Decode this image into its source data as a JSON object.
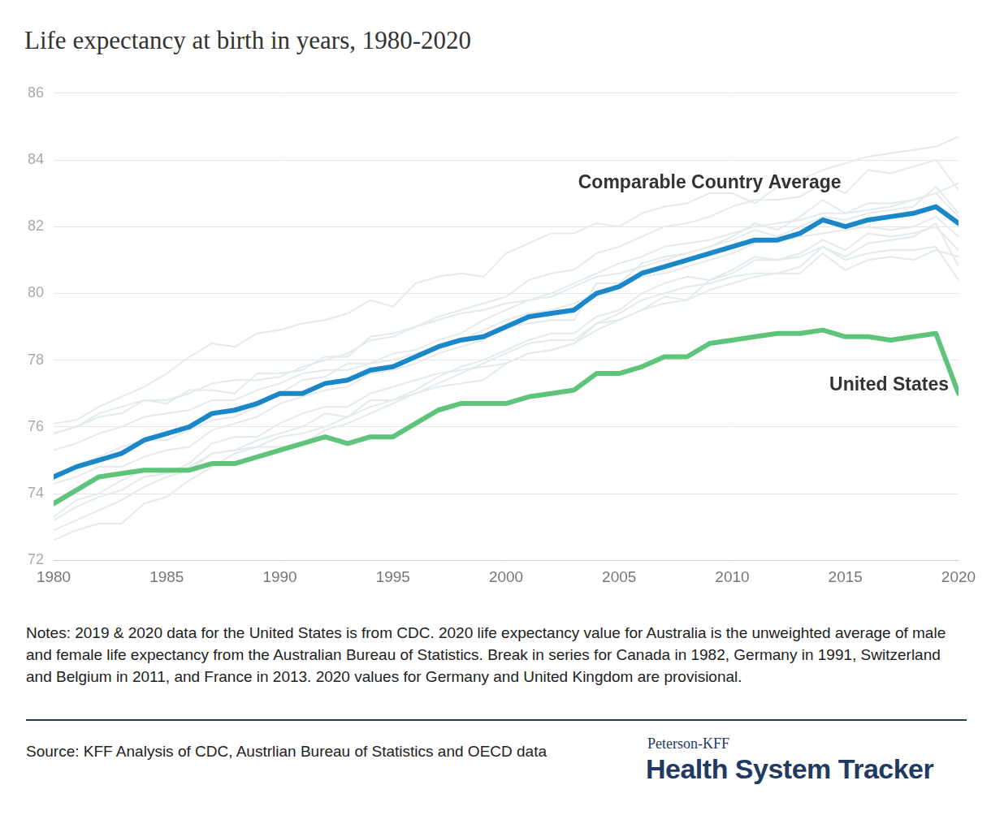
{
  "chart_data": {
    "type": "line",
    "title": "Life expectancy at birth in years, 1980-2020",
    "x": [
      1980,
      1981,
      1982,
      1983,
      1984,
      1985,
      1986,
      1987,
      1988,
      1989,
      1990,
      1991,
      1992,
      1993,
      1994,
      1995,
      1996,
      1997,
      1998,
      1999,
      2000,
      2001,
      2002,
      2003,
      2004,
      2005,
      2006,
      2007,
      2008,
      2009,
      2010,
      2011,
      2012,
      2013,
      2014,
      2015,
      2016,
      2017,
      2018,
      2019,
      2020
    ],
    "xlim": [
      1980,
      2020
    ],
    "xticks": [
      1980,
      1985,
      1990,
      1995,
      2000,
      2005,
      2010,
      2015,
      2020
    ],
    "ylim": [
      72,
      86
    ],
    "yticks": [
      72,
      74,
      76,
      78,
      80,
      82,
      84,
      86
    ],
    "grid": true,
    "series": [
      {
        "color": "#e4eaee",
        "values": [
          76.1,
          76.2,
          76.6,
          76.9,
          77.2,
          77.6,
          78.1,
          78.5,
          78.4,
          78.8,
          78.9,
          79.1,
          79.2,
          79.4,
          79.8,
          79.6,
          80.3,
          80.5,
          80.6,
          80.5,
          81.2,
          81.5,
          81.8,
          81.8,
          82.1,
          82.0,
          82.4,
          82.6,
          82.7,
          83.0,
          83.0,
          82.7,
          83.2,
          83.4,
          83.7,
          83.9,
          84.1,
          84.2,
          84.3,
          84.4,
          84.7
        ]
      },
      {
        "color": "#e4eaee",
        "values": [
          75.8,
          76.0,
          76.3,
          76.4,
          76.8,
          76.8,
          77.0,
          77.3,
          77.4,
          77.4,
          77.5,
          77.8,
          78.0,
          78.2,
          78.6,
          78.7,
          79.0,
          79.3,
          79.5,
          79.7,
          79.9,
          80.4,
          80.6,
          80.7,
          81.2,
          81.4,
          81.7,
          82.0,
          82.1,
          82.3,
          82.6,
          82.8,
          82.8,
          82.9,
          83.3,
          83.0,
          83.7,
          83.6,
          83.8,
          84.0,
          83.1
        ]
      },
      {
        "color": "#e4eaee",
        "values": [
          74.6,
          74.8,
          75.1,
          75.4,
          75.6,
          75.6,
          75.9,
          76.2,
          76.3,
          76.6,
          77.0,
          77.4,
          77.5,
          77.9,
          77.9,
          78.2,
          78.3,
          78.6,
          78.8,
          79.2,
          79.5,
          79.8,
          80.0,
          80.3,
          80.6,
          80.9,
          81.1,
          81.4,
          81.5,
          81.6,
          81.8,
          82.0,
          82.1,
          82.2,
          82.4,
          82.4,
          82.5,
          82.6,
          82.8,
          83.0,
          83.3
        ]
      },
      {
        "color": "#e4eaee",
        "values": [
          75.8,
          76.0,
          76.4,
          76.6,
          76.8,
          76.7,
          77.1,
          77.1,
          77.0,
          77.6,
          77.6,
          77.7,
          78.1,
          78.1,
          78.7,
          78.8,
          79.0,
          79.2,
          79.4,
          79.5,
          79.7,
          79.8,
          79.9,
          80.2,
          80.5,
          80.6,
          80.8,
          81.0,
          81.2,
          81.4,
          81.6,
          81.9,
          81.7,
          82.0,
          82.3,
          82.2,
          82.4,
          82.5,
          82.6,
          83.2,
          82.4
        ]
      },
      {
        "color": "#e4eaee",
        "values": [
          75.3,
          75.5,
          75.8,
          76.0,
          76.3,
          76.4,
          76.5,
          76.8,
          76.8,
          77.1,
          77.3,
          77.6,
          77.7,
          77.7,
          77.9,
          78.0,
          78.2,
          78.4,
          78.6,
          78.9,
          79.2,
          79.4,
          79.5,
          79.7,
          80.0,
          80.2,
          80.5,
          80.6,
          80.8,
          81.0,
          81.2,
          81.5,
          81.6,
          81.7,
          81.8,
          81.9,
          82.0,
          81.9,
          82.0,
          82.3,
          81.7
        ]
      },
      {
        "color": "#e4eaee",
        "values": [
          74.3,
          74.5,
          74.8,
          74.8,
          75.1,
          75.3,
          75.4,
          75.9,
          76.1,
          76.3,
          76.7,
          76.9,
          77.1,
          77.2,
          77.6,
          77.7,
          77.9,
          78.2,
          78.4,
          78.6,
          79.0,
          79.1,
          79.2,
          79.2,
          80.3,
          80.3,
          80.9,
          81.1,
          81.2,
          81.4,
          81.7,
          82.1,
          81.9,
          82.3,
          82.8,
          82.4,
          82.7,
          82.7,
          82.8,
          83.0,
          82.3
        ]
      },
      {
        "color": "#e4eaee",
        "values": [
          72.9,
          73.2,
          73.5,
          73.8,
          74.2,
          74.5,
          74.7,
          75.2,
          75.3,
          75.4,
          75.4,
          75.5,
          75.9,
          76.1,
          76.4,
          76.7,
          77.0,
          77.3,
          77.6,
          77.9,
          78.2,
          78.5,
          78.6,
          78.6,
          79.1,
          79.4,
          79.8,
          80.0,
          80.2,
          80.3,
          80.5,
          80.6,
          80.6,
          80.6,
          81.2,
          80.7,
          81.0,
          81.1,
          81.0,
          81.3,
          81.1
        ]
      },
      {
        "color": "#e4eaee",
        "values": [
          73.2,
          73.6,
          73.9,
          74.1,
          74.5,
          74.6,
          74.8,
          75.2,
          75.3,
          75.6,
          75.8,
          76.0,
          76.4,
          76.3,
          76.8,
          76.8,
          77.0,
          77.2,
          77.3,
          77.4,
          77.9,
          78.2,
          78.3,
          78.5,
          78.9,
          79.2,
          79.5,
          79.7,
          79.8,
          80.4,
          80.6,
          81.0,
          81.0,
          81.1,
          81.4,
          81.0,
          81.2,
          81.3,
          81.3,
          81.4,
          80.4
        ]
      },
      {
        "color": "#e4eaee",
        "values": [
          73.3,
          73.8,
          74.0,
          74.4,
          74.7,
          74.6,
          74.9,
          75.5,
          75.7,
          75.7,
          76.1,
          76.4,
          76.6,
          76.6,
          77.0,
          77.2,
          77.4,
          77.6,
          77.7,
          77.8,
          77.9,
          78.2,
          78.3,
          78.5,
          79.1,
          79.2,
          79.5,
          79.9,
          79.8,
          80.1,
          80.3,
          80.5,
          80.6,
          80.8,
          81.4,
          81.1,
          81.5,
          81.6,
          81.7,
          82.1,
          80.8
        ]
      },
      {
        "color": "#e4eaee",
        "values": [
          72.6,
          72.9,
          73.1,
          73.1,
          73.7,
          73.9,
          74.4,
          74.8,
          75.2,
          75.4,
          75.7,
          75.8,
          76.0,
          76.3,
          76.6,
          76.8,
          77.1,
          77.5,
          77.8,
          78.0,
          78.3,
          78.6,
          78.8,
          78.8,
          79.3,
          79.5,
          80.0,
          80.3,
          80.5,
          80.4,
          80.7,
          81.1,
          81.0,
          81.2,
          81.6,
          81.3,
          81.8,
          81.7,
          81.8,
          82.0,
          81.3
        ]
      },
      {
        "name": "Comparable Country Average",
        "color": "#1a87c9",
        "values": [
          74.5,
          74.8,
          75.0,
          75.2,
          75.6,
          75.8,
          76.0,
          76.4,
          76.5,
          76.7,
          77.0,
          77.0,
          77.3,
          77.4,
          77.7,
          77.8,
          78.1,
          78.4,
          78.6,
          78.7,
          79.0,
          79.3,
          79.4,
          79.5,
          80.0,
          80.2,
          80.6,
          80.8,
          81.0,
          81.2,
          81.4,
          81.6,
          81.6,
          81.8,
          82.2,
          82.0,
          82.2,
          82.3,
          82.4,
          82.6,
          82.1
        ]
      },
      {
        "name": "United States",
        "color": "#5ec47a",
        "values": [
          73.7,
          74.1,
          74.5,
          74.6,
          74.7,
          74.7,
          74.7,
          74.9,
          74.9,
          75.1,
          75.3,
          75.5,
          75.7,
          75.5,
          75.7,
          75.7,
          76.1,
          76.5,
          76.7,
          76.7,
          76.7,
          76.9,
          77.0,
          77.1,
          77.6,
          77.6,
          77.8,
          78.1,
          78.1,
          78.5,
          78.6,
          78.7,
          78.8,
          78.8,
          78.9,
          78.7,
          78.7,
          78.6,
          78.7,
          78.8,
          77.0
        ]
      }
    ]
  },
  "notes": "Notes: 2019 & 2020 data for the United States is from CDC. 2020 life expectancy value for Australia is the unweighted average of male and female life expectancy from the Australian Bureau of Statistics. Break in series for Canada in 1982, Germany in 1991, Switzerland and Belgium in 2011, and France in 2013. 2020 values for Germany and United Kingdom are provisional.",
  "source": "Source: KFF Analysis of CDC, Austrlian Bureau of Statistics and OECD data",
  "logo": [
    "Peterson-KFF",
    "Health System Tracker"
  ]
}
